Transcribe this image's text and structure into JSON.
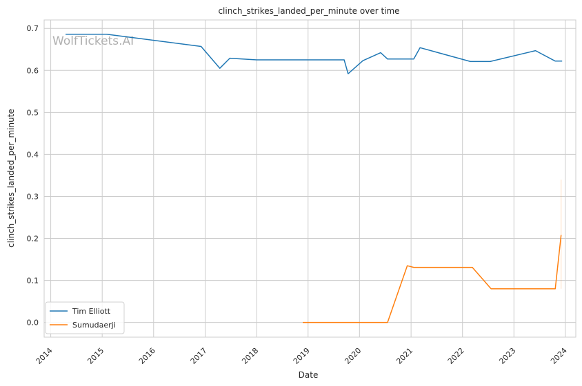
{
  "chart_data": {
    "type": "line",
    "title": "clinch_strikes_landed_per_minute over time",
    "xlabel": "Date",
    "ylabel": "clinch_strikes_landed_per_minute",
    "watermark": "WolfTickets.AI",
    "xlim": [
      "2013-11-15",
      "2024-03-15"
    ],
    "ylim": [
      -0.035,
      0.72
    ],
    "x_ticks": [
      "2014",
      "2015",
      "2016",
      "2017",
      "2018",
      "2019",
      "2020",
      "2021",
      "2022",
      "2023",
      "2024"
    ],
    "y_ticks": [
      0.0,
      0.1,
      0.2,
      0.3,
      0.4,
      0.5,
      0.6,
      0.7
    ],
    "y_tick_labels": [
      "0.0",
      "0.1",
      "0.2",
      "0.3",
      "0.4",
      "0.5",
      "0.6",
      "0.7"
    ],
    "grid": true,
    "legend_position": "lower-left",
    "colors": {
      "Tim Elliott": "#1f77b4",
      "Sumudaerji": "#ff7f0e"
    },
    "series": [
      {
        "name": "Tim Elliott",
        "points": [
          [
            "2014-04-16",
            0.686
          ],
          [
            "2015-02-01",
            0.686
          ],
          [
            "2016-12-03",
            0.657
          ],
          [
            "2017-04-15",
            0.605
          ],
          [
            "2017-06-25",
            0.629
          ],
          [
            "2018-01-01",
            0.625
          ],
          [
            "2019-09-14",
            0.625
          ],
          [
            "2019-10-12",
            0.592
          ],
          [
            "2020-01-25",
            0.623
          ],
          [
            "2020-05-30",
            0.642
          ],
          [
            "2020-07-18",
            0.627
          ],
          [
            "2021-01-20",
            0.627
          ],
          [
            "2021-03-06",
            0.654
          ],
          [
            "2022-02-26",
            0.621
          ],
          [
            "2022-07-16",
            0.621
          ],
          [
            "2023-06-03",
            0.647
          ],
          [
            "2023-10-21",
            0.622
          ],
          [
            "2023-12-09",
            0.622
          ]
        ]
      },
      {
        "name": "Sumudaerji",
        "points": [
          [
            "2018-11-24",
            0.0
          ],
          [
            "2020-07-18",
            0.0
          ],
          [
            "2020-12-05",
            0.135
          ],
          [
            "2021-01-20",
            0.131
          ],
          [
            "2022-03-12",
            0.131
          ],
          [
            "2022-07-23",
            0.08
          ],
          [
            "2023-10-21",
            0.08
          ],
          [
            "2023-12-02",
            0.208
          ]
        ]
      }
    ]
  }
}
